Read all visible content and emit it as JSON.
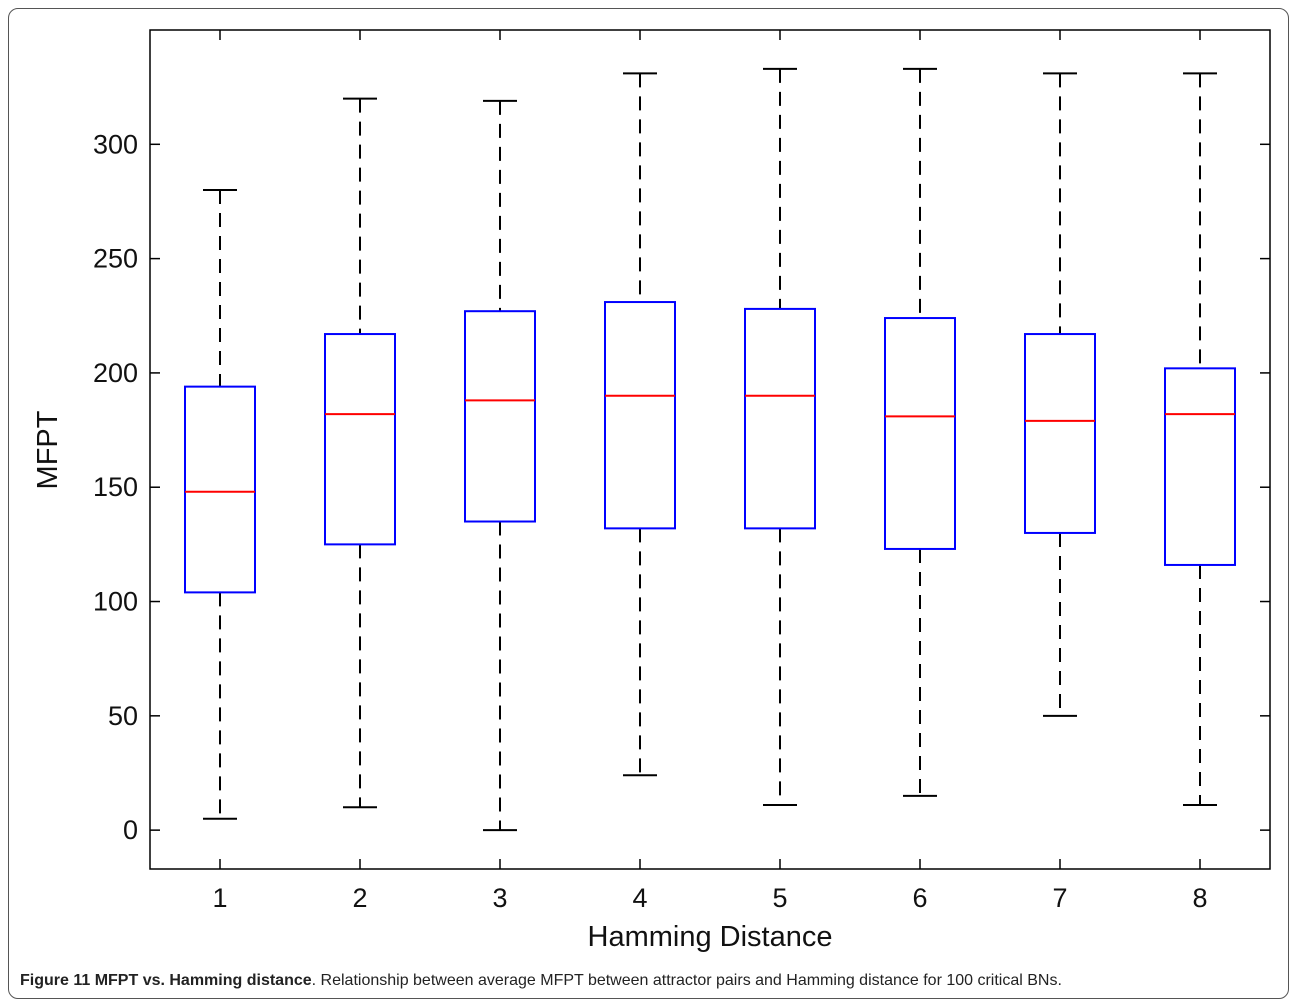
{
  "chart_data": {
    "type": "boxplot",
    "xlabel": "Hamming Distance",
    "ylabel": "MFPT",
    "categories": [
      "1",
      "2",
      "3",
      "4",
      "5",
      "6",
      "7",
      "8"
    ],
    "ylim": [
      -17,
      350
    ],
    "yticks": [
      0,
      50,
      100,
      150,
      200,
      250,
      300
    ],
    "boxes": [
      {
        "category": "1",
        "whisker_low": 5,
        "q1": 104,
        "median": 148,
        "q3": 194,
        "whisker_high": 280
      },
      {
        "category": "2",
        "whisker_low": 10,
        "q1": 125,
        "median": 182,
        "q3": 217,
        "whisker_high": 320
      },
      {
        "category": "3",
        "whisker_low": 0,
        "q1": 135,
        "median": 188,
        "q3": 227,
        "whisker_high": 319
      },
      {
        "category": "4",
        "whisker_low": 24,
        "q1": 132,
        "median": 190,
        "q3": 231,
        "whisker_high": 331
      },
      {
        "category": "5",
        "whisker_low": 11,
        "q1": 132,
        "median": 190,
        "q3": 228,
        "whisker_high": 333
      },
      {
        "category": "6",
        "whisker_low": 15,
        "q1": 123,
        "median": 181,
        "q3": 224,
        "whisker_high": 333
      },
      {
        "category": "7",
        "whisker_low": 50,
        "q1": 130,
        "median": 179,
        "q3": 217,
        "whisker_high": 331
      },
      {
        "category": "8",
        "whisker_low": 11,
        "q1": 116,
        "median": 182,
        "q3": 202,
        "whisker_high": 331
      }
    ],
    "colors": {
      "box": "#0000ff",
      "median": "#ff0000",
      "whisker": "#000000"
    },
    "grid": false,
    "legend": "none"
  },
  "caption": {
    "label": "Figure 11 MFPT vs. Hamming distance",
    "text": ". Relationship between average MFPT between attractor pairs and Hamming distance for 100 critical BNs."
  }
}
